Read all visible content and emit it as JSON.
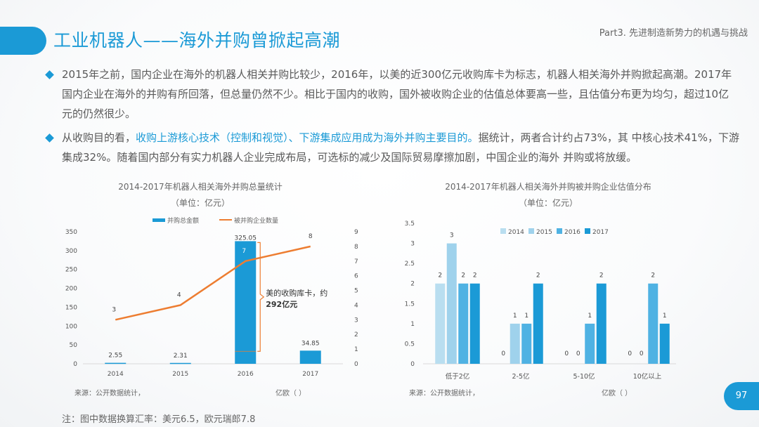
{
  "header": {
    "title": "工业机器人——海外并购曾掀起高潮",
    "part": "Part3. 先进制造新势力的机遇与挑战"
  },
  "bullets": {
    "b1": "2015年之前，国内企业在海外的机器人相关并购比较少，2016年，以美的近300亿元收购库卡为标志，机器人相关海外并购掀起高潮。2017年国内企业在海外的并购有所回落，但总量仍然不少。相比于国内的收购，国外被收购企业的估值总体要高一些，且估值分布更为均匀，超过10亿元的仍然很少。",
    "b2_pre": "从收购目的看，",
    "b2_hl": "收购上游核心技术（控制和视觉）、下游集成应用成为海外并购主要目的。",
    "b2_post": "据统计，两者合计约占73%，其 中核心技术41%，下游集成32%。随着国内部分有实力机器人企业完成布局，可选标的减少及国际贸易摩擦加剧，中国企业的海外 并购或将放缓。"
  },
  "left_source": "来源：公开数据统计，",
  "left_source_unit": "亿欧（  ）",
  "right_source": "来源：公开数据统计，",
  "right_source_unit": "亿欧（  ）",
  "note": "注：图中数据换算汇率：美元6.5，欧元瑞郎7.8",
  "page_number": "97",
  "chart_data": [
    {
      "type": "bar",
      "title": "2014-2017年机器人相关海外并购总量统计",
      "subtitle": "（单位：亿元）",
      "categories": [
        "2014",
        "2015",
        "2016",
        "2017"
      ],
      "series": [
        {
          "name": "并购总金额",
          "type": "bar",
          "axis": "left",
          "values": [
            2.55,
            2.31,
            325.05,
            34.85
          ],
          "color": "#1b9ad6"
        },
        {
          "name": "被并购企业数量",
          "type": "line",
          "axis": "right",
          "values": [
            3,
            4,
            7,
            8
          ],
          "color": "#ed7d31"
        }
      ],
      "ylim": [
        0,
        350
      ],
      "yticks": [
        0,
        50,
        100,
        150,
        200,
        250,
        300,
        350
      ],
      "y2lim": [
        0,
        9
      ],
      "y2ticks": [
        0,
        1,
        2,
        3,
        4,
        5,
        6,
        7,
        8,
        9
      ],
      "annotation": {
        "line1": "美的收购库卡，约",
        "line2": "292亿元",
        "category": "2016"
      },
      "legend": "top-center"
    },
    {
      "type": "bar",
      "title": "2014-2017年机器人相关海外并购被并购企业估值分布",
      "subtitle": "（单位：亿元）",
      "categories": [
        "低于2亿",
        "2-5亿",
        "5-10亿",
        "10亿以上"
      ],
      "series": [
        {
          "name": "2014",
          "values": [
            2,
            0,
            0,
            0
          ],
          "color": "#b9def0"
        },
        {
          "name": "2015",
          "values": [
            3,
            1,
            0,
            0
          ],
          "color": "#9fd2ec"
        },
        {
          "name": "2016",
          "values": [
            2,
            1,
            1,
            2
          ],
          "color": "#4fb2e3"
        },
        {
          "name": "2017",
          "values": [
            2,
            2,
            2,
            1
          ],
          "color": "#1b9ad6"
        }
      ],
      "ylim": [
        0,
        3.5
      ],
      "yticks": [
        "0",
        "0.5",
        "1",
        "1.5",
        "2",
        "2.5",
        "3",
        "3.5"
      ],
      "legend": "top-center"
    }
  ]
}
